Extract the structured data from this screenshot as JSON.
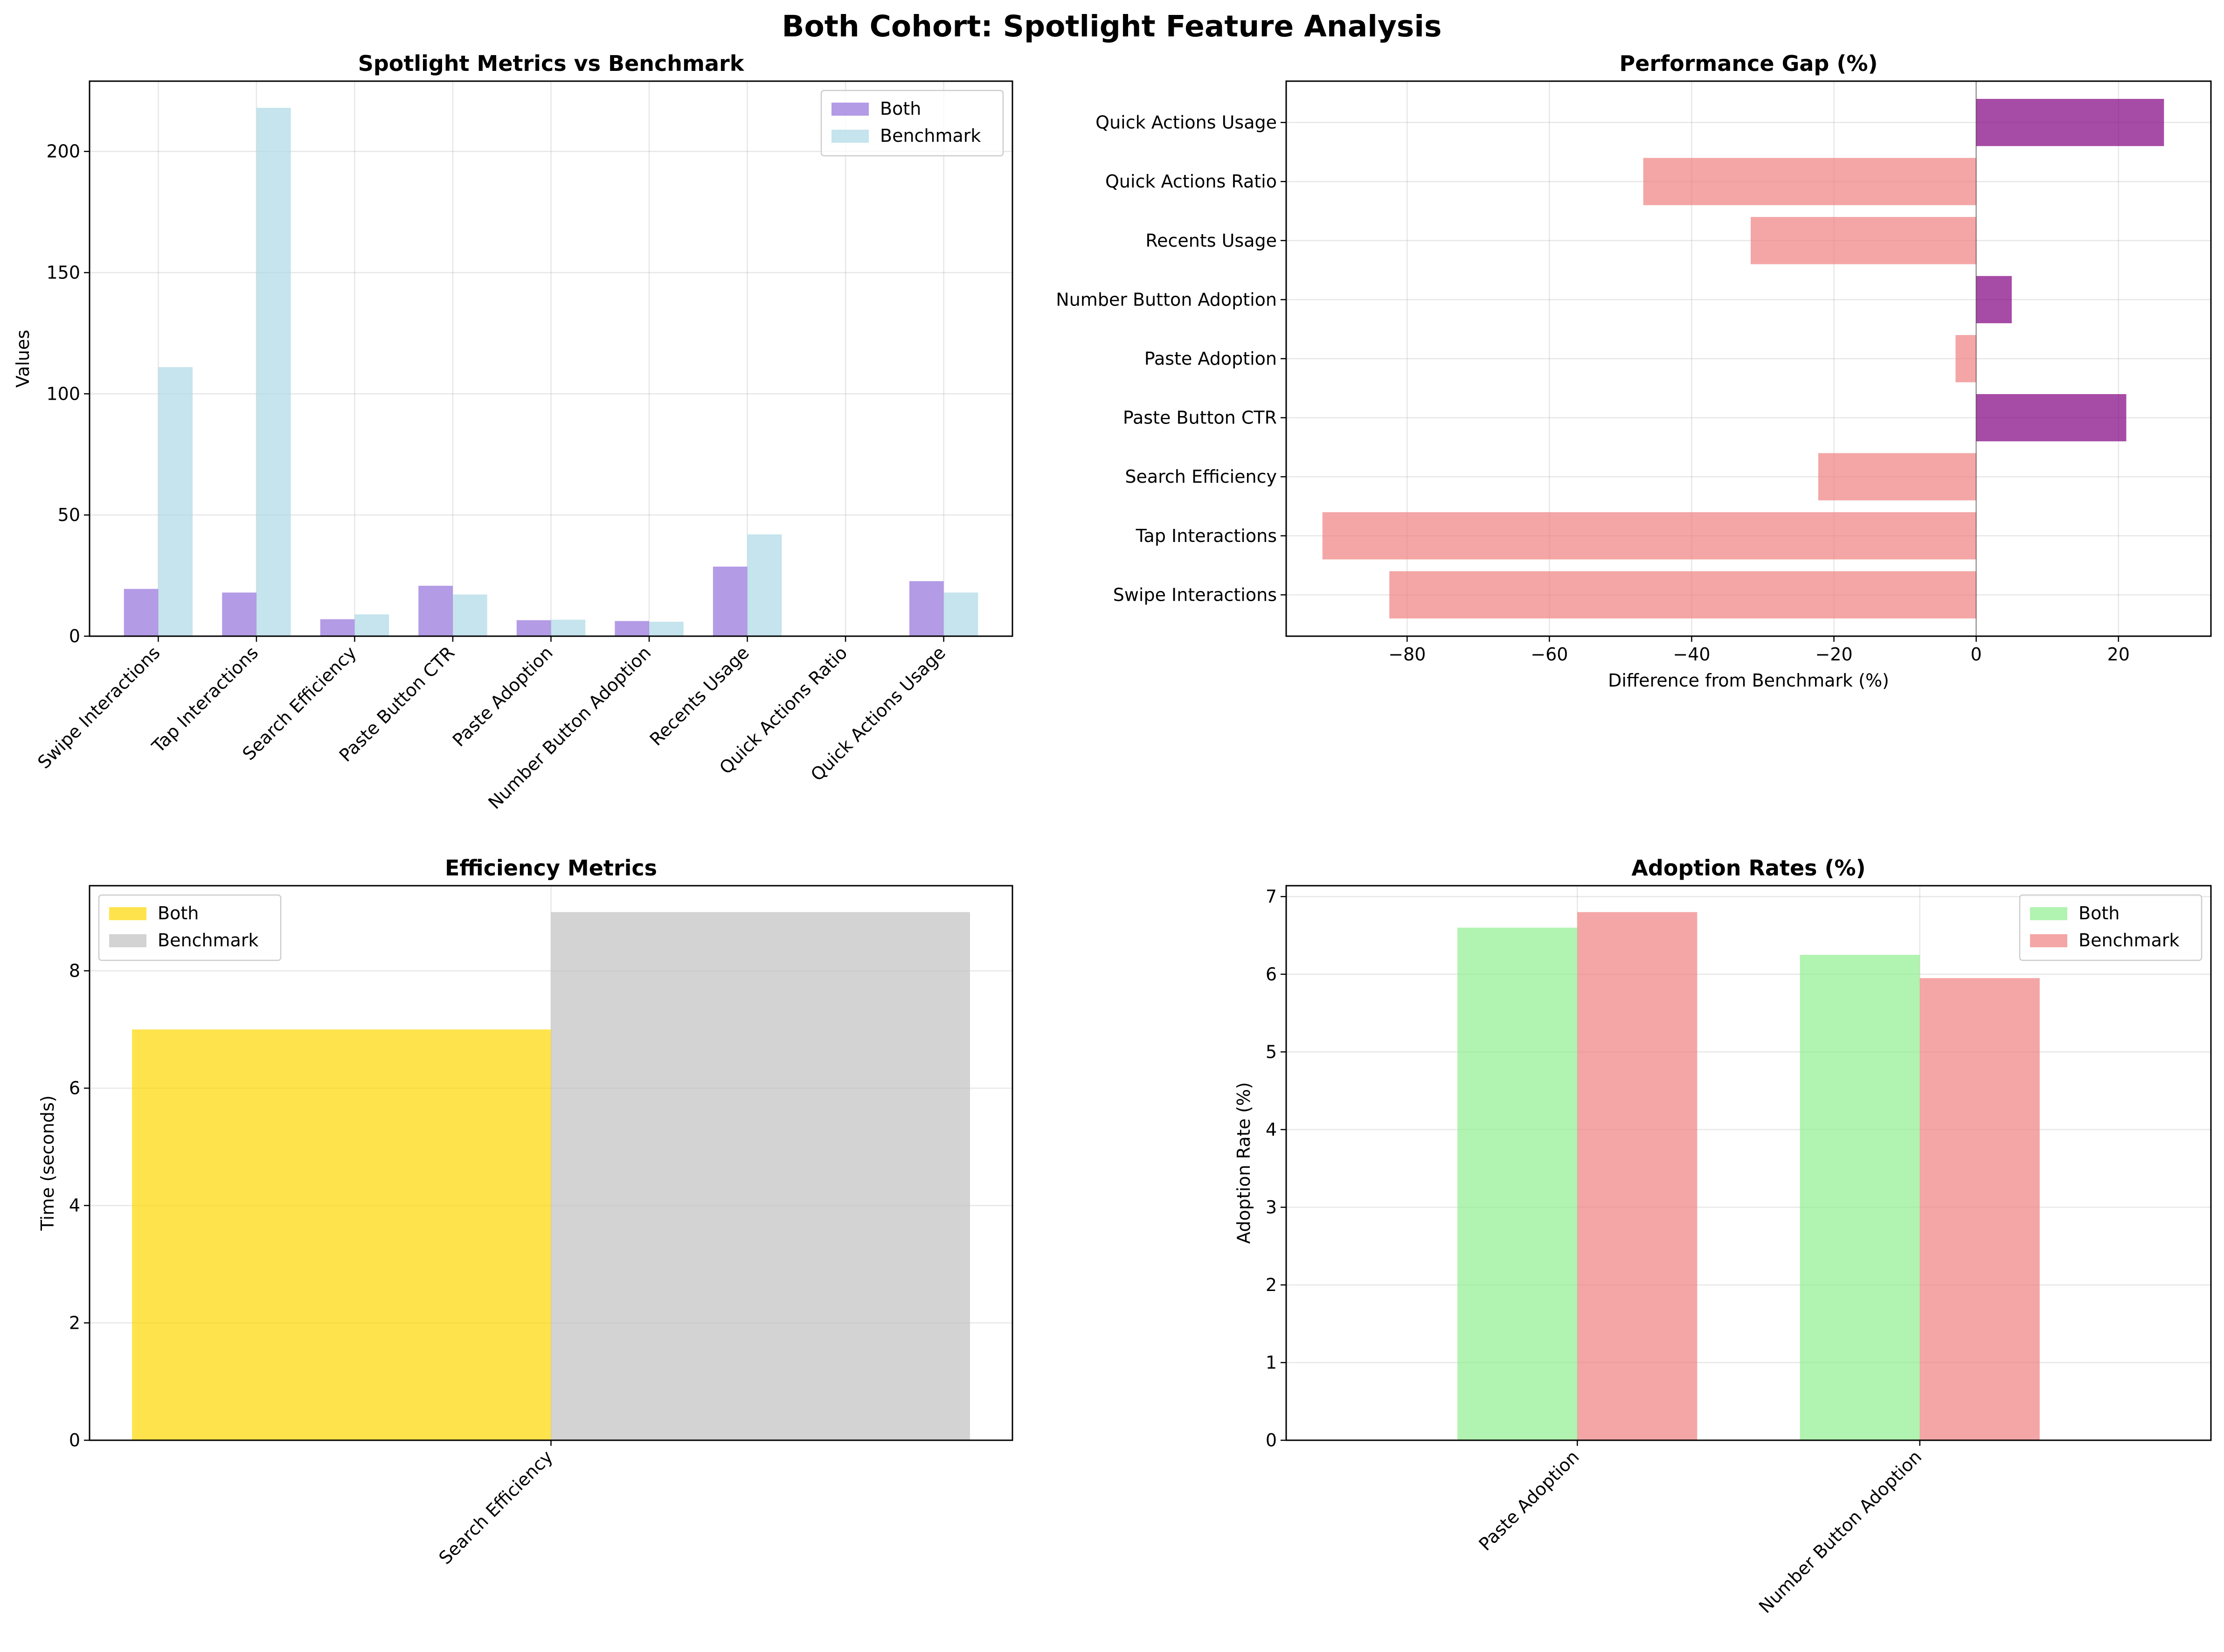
{
  "figure": {
    "title": "Both Cohort: Spotlight Feature Analysis"
  },
  "colors": {
    "both_main": "#9370DB",
    "bench_main": "#ADD8E6",
    "gap_positive": "#800080",
    "gap_negative": "#F08080",
    "both_eff": "#FFD700",
    "bench_eff": "#C0C0C0",
    "both_adopt": "#90EE90",
    "bench_adopt": "#F08080"
  },
  "chart_data": [
    {
      "type": "bar",
      "title": "Spotlight Metrics vs Benchmark",
      "xlabel": "",
      "ylabel": "Values",
      "categories": [
        "Swipe Interactions",
        "Tap Interactions",
        "Search Efficiency",
        "Paste Button CTR",
        "Paste Adoption",
        "Number Button Adoption",
        "Recents Usage",
        "Quick Actions Ratio",
        "Quick Actions Usage"
      ],
      "series": [
        {
          "name": "Both",
          "values": [
            19.5,
            18,
            7,
            20.8,
            6.6,
            6.25,
            28.7,
            0,
            22.7
          ]
        },
        {
          "name": "Benchmark",
          "values": [
            111,
            218,
            9,
            17.2,
            6.8,
            5.95,
            42,
            0,
            18
          ]
        }
      ],
      "ylim": [
        0,
        229
      ],
      "yticks": [
        0,
        50,
        100,
        150,
        200
      ],
      "grid": true,
      "legend": "upper right"
    },
    {
      "type": "bar",
      "orientation": "horizontal",
      "title": "Performance Gap (%)",
      "xlabel": "Difference from Benchmark (%)",
      "ylabel": "",
      "categories": [
        "Swipe Interactions",
        "Tap Interactions",
        "Search Efficiency",
        "Paste Button CTR",
        "Paste Adoption",
        "Number Button Adoption",
        "Recents Usage",
        "Quick Actions Ratio",
        "Quick Actions Usage"
      ],
      "values": [
        -82.5,
        -91.9,
        -22.2,
        21.1,
        -2.9,
        5.0,
        -31.7,
        -46.8,
        26.4
      ],
      "xlim": [
        -97,
        33
      ],
      "xticks": [
        -80,
        -60,
        -40,
        -20,
        0,
        20
      ],
      "xtick_labels": [
        "−80",
        "−60",
        "−40",
        "−20",
        "0",
        "20"
      ],
      "grid": true
    },
    {
      "type": "bar",
      "title": "Efficiency Metrics",
      "xlabel": "",
      "ylabel": "Time (seconds)",
      "categories": [
        "Search Efficiency"
      ],
      "series": [
        {
          "name": "Both",
          "values": [
            7
          ]
        },
        {
          "name": "Benchmark",
          "values": [
            9
          ]
        }
      ],
      "ylim": [
        0,
        9.45
      ],
      "yticks": [
        0,
        2,
        4,
        6,
        8
      ],
      "grid": true,
      "legend": "upper left"
    },
    {
      "type": "bar",
      "title": "Adoption Rates (%)",
      "xlabel": "",
      "ylabel": "Adoption Rate (%)",
      "categories": [
        "Paste Adoption",
        "Number Button Adoption"
      ],
      "series": [
        {
          "name": "Both",
          "values": [
            6.6,
            6.25
          ]
        },
        {
          "name": "Benchmark",
          "values": [
            6.8,
            5.95
          ]
        }
      ],
      "ylim": [
        0,
        7.14
      ],
      "yticks": [
        0,
        1,
        2,
        3,
        4,
        5,
        6,
        7
      ],
      "grid": true,
      "legend": "upper right"
    }
  ]
}
